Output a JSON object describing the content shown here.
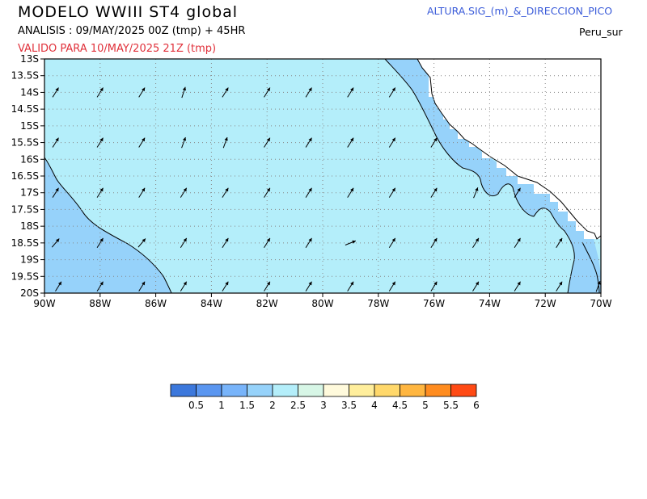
{
  "header": {
    "title": "MODELO  WWIII  ST4  global",
    "analysis": "ANALISIS : 09/MAY/2025 00Z   (tmp) + 45HR",
    "valid": "VALIDO PARA   10/MAY/2025 21Z   (tmp)",
    "product": "ALTURA.SIG_(m)_&_DIRECCION_PICO",
    "region": "Peru_sur"
  },
  "map": {
    "lat_labels": [
      "13S",
      "13.5S",
      "14S",
      "14.5S",
      "15S",
      "15.5S",
      "16S",
      "16.5S",
      "17S",
      "17.5S",
      "18S",
      "18.5S",
      "19S",
      "19.5S",
      "20S"
    ],
    "lon_labels": [
      "90W",
      "88W",
      "86W",
      "84W",
      "82W",
      "80W",
      "78W",
      "76W",
      "74W",
      "72W",
      "70W"
    ],
    "lat_range": [
      -20,
      -13
    ],
    "lon_range": [
      -90,
      -70
    ],
    "colors": {
      "sea_main": "#b4eefa",
      "sea_low": "#96d2fa",
      "land": "#ffffff",
      "grid": "#888888"
    }
  },
  "colorbar": {
    "colors": [
      "#3c78dc",
      "#5a96f0",
      "#78b4fa",
      "#96d2fa",
      "#b4eefa",
      "#d7f6e6",
      "#fffadc",
      "#ffee9c",
      "#ffd86b",
      "#ffb640",
      "#ff8c1f",
      "#ff4a14"
    ],
    "labels": [
      "0.5",
      "1",
      "1.5",
      "2",
      "2.5",
      "3",
      "3.5",
      "4",
      "4.5",
      "5",
      "5.5",
      "6"
    ]
  }
}
